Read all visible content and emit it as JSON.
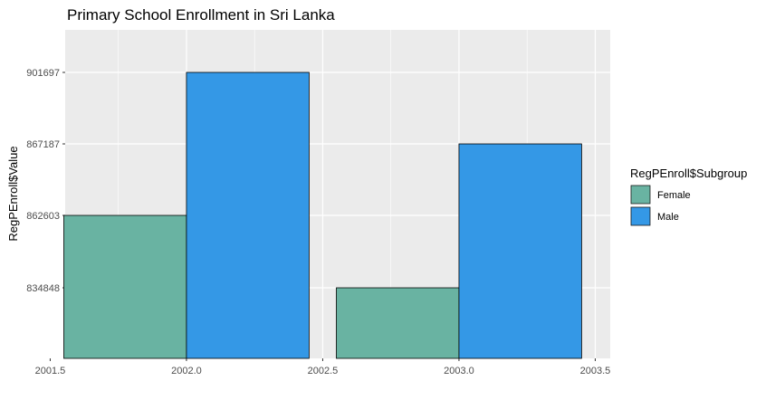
{
  "chart_data": {
    "type": "bar",
    "title": "Primary School Enrollment in Sri Lanka",
    "xlabel": "",
    "ylabel": "RegPEnroll$Value",
    "x_ticks": [
      "2001.5",
      "2002.0",
      "2002.5",
      "2003.0",
      "2003.5"
    ],
    "y_ticks": [
      "834848",
      "862603",
      "867187",
      "901697"
    ],
    "categories": [
      2002,
      2003
    ],
    "series": [
      {
        "name": "Female",
        "values": [
          862603,
          834848
        ],
        "color": "#69b3a2"
      },
      {
        "name": "Male",
        "values": [
          901697,
          867187
        ],
        "color": "#3498e6"
      }
    ],
    "legend": {
      "title": "RegPEnroll$Subgroup",
      "position": "right"
    },
    "grid": true,
    "panel_background": "#ebebeb"
  }
}
